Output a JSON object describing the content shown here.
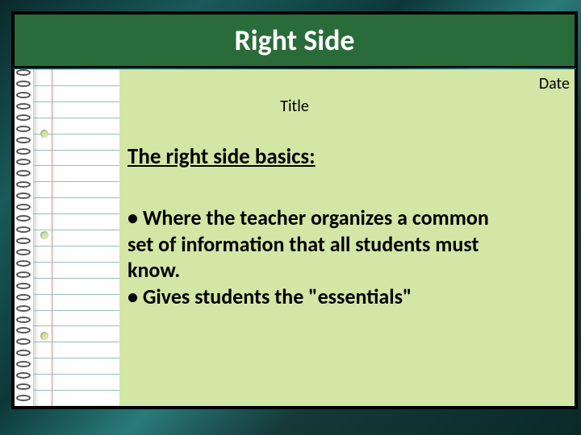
{
  "banner": {
    "title": "Right Side"
  },
  "labels": {
    "date": "Date",
    "subtitle": "Title"
  },
  "content": {
    "heading": "The right side basics:",
    "bullet1": "• Where the teacher organizes a common set of information that all students must know.",
    "bullet2": "• Gives students the \"essentials\""
  },
  "style": {
    "banner_bg": "#2a6b3a",
    "card_bg": "#d4e6a5",
    "title_fontsize": 36,
    "label_fontsize": 20,
    "heading_fontsize": 27,
    "body_fontsize": 26,
    "notebook": {
      "spiral_count": 30,
      "line_count": 20,
      "hole_positions_pct": [
        18,
        48,
        78
      ],
      "margin_color": "#d88",
      "rule_color": "#9bb"
    }
  }
}
